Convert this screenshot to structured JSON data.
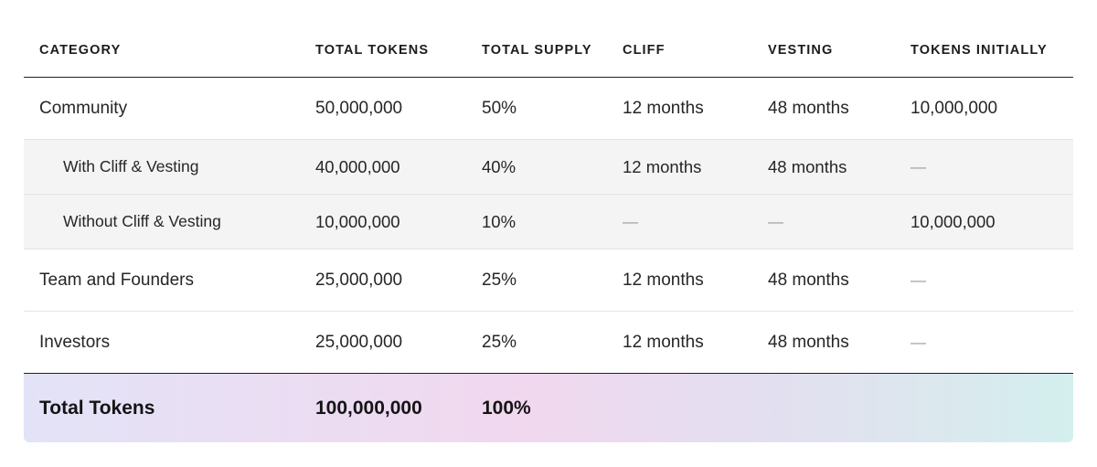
{
  "table": {
    "headers": [
      "CATEGORY",
      "TOTAL TOKENS",
      "TOTAL SUPPLY",
      "CLIFF",
      "VESTING",
      "TOKENS INITIALLY"
    ],
    "rows": [
      {
        "category": "Community",
        "total_tokens": "50,000,000",
        "total_supply": "50%",
        "cliff": "12 months",
        "vesting": "48 months",
        "tokens_initially": "10,000,000"
      },
      {
        "category": "With Cliff & Vesting",
        "total_tokens": "40,000,000",
        "total_supply": "40%",
        "cliff": "12 months",
        "vesting": "48 months",
        "tokens_initially": "—"
      },
      {
        "category": "Without Cliff & Vesting",
        "total_tokens": "10,000,000",
        "total_supply": "10%",
        "cliff": "—",
        "vesting": "—",
        "tokens_initially": "10,000,000"
      },
      {
        "category": "Team and Founders",
        "total_tokens": "25,000,000",
        "total_supply": "25%",
        "cliff": "12 months",
        "vesting": "48 months",
        "tokens_initially": "—"
      },
      {
        "category": "Investors",
        "total_tokens": "25,000,000",
        "total_supply": "25%",
        "cliff": "12 months",
        "vesting": "48 months",
        "tokens_initially": "—"
      }
    ],
    "total": {
      "category": "Total Tokens",
      "total_tokens": "100,000,000",
      "total_supply": "100%"
    }
  },
  "colors": {
    "header_rule": "#222222",
    "sub_row_background": "#f4f4f4",
    "total_gradient": [
      "#e3e3f7",
      "#f1d8ef",
      "#d3efee"
    ]
  }
}
